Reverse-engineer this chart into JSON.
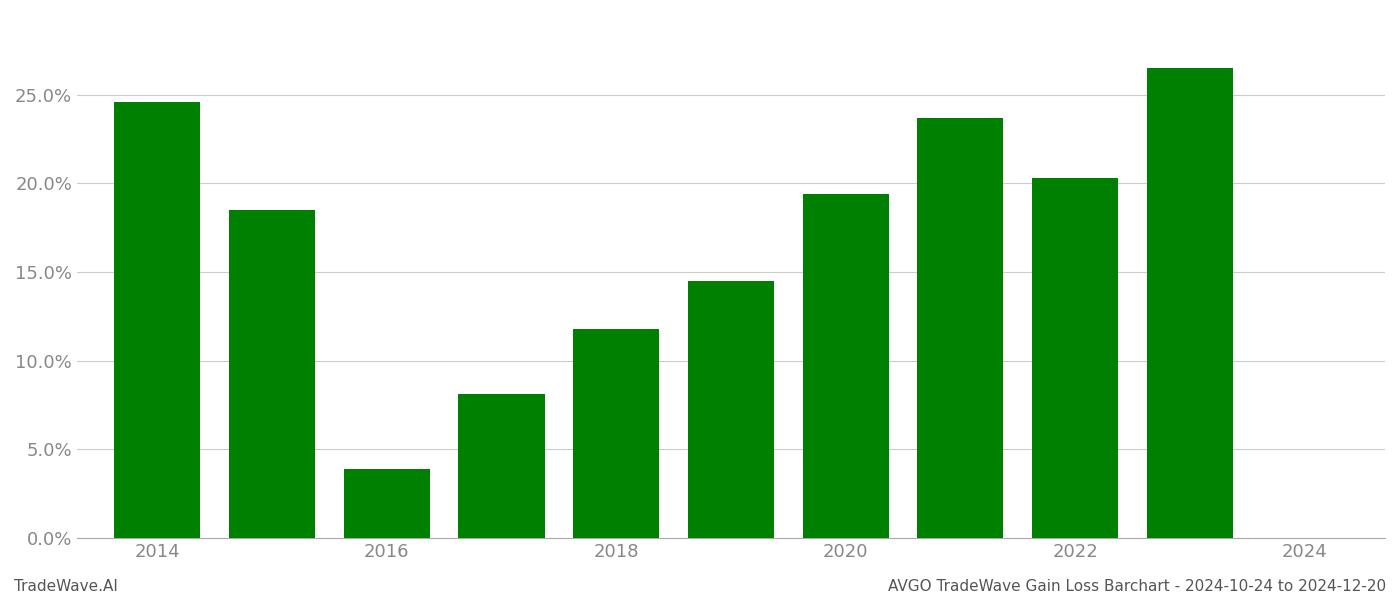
{
  "years": [
    2014,
    2015,
    2016,
    2017,
    2018,
    2019,
    2020,
    2021,
    2022,
    2023
  ],
  "values": [
    0.246,
    0.185,
    0.039,
    0.081,
    0.118,
    0.145,
    0.194,
    0.237,
    0.203,
    0.265
  ],
  "bar_color": "#008000",
  "background_color": "#ffffff",
  "grid_color": "#cccccc",
  "ylim": [
    0,
    0.295
  ],
  "yticks": [
    0.0,
    0.05,
    0.1,
    0.15,
    0.2,
    0.25
  ],
  "footer_left": "TradeWave.AI",
  "footer_right": "AVGO TradeWave Gain Loss Barchart - 2024-10-24 to 2024-12-20",
  "footer_fontsize": 11,
  "tick_fontsize": 13,
  "bar_width": 0.75
}
